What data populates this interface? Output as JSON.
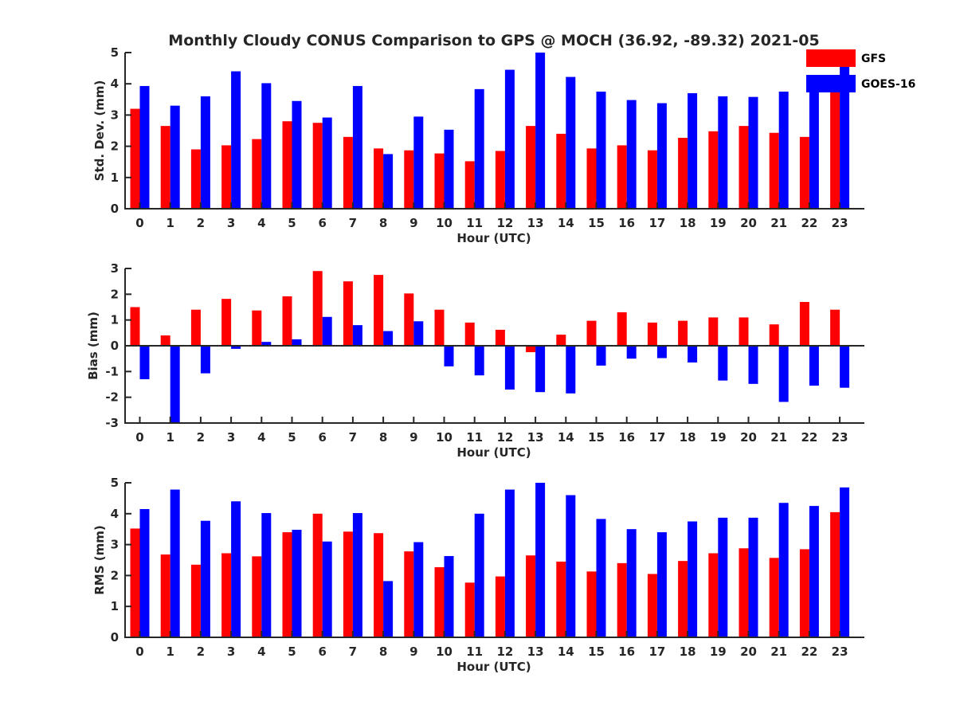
{
  "chart_data": [
    {
      "type": "bar",
      "title": "Monthly Cloudy CONUS Comparison to GPS @ MOCH (36.92, -89.32) 2021-05",
      "xlabel": "Hour (UTC)",
      "ylabel": "Std. Dev. (mm)",
      "ylim": [
        0,
        5
      ],
      "yticks": [
        "0",
        "1",
        "2",
        "3",
        "4",
        "5"
      ],
      "categories": [
        "0",
        "1",
        "2",
        "3",
        "4",
        "5",
        "6",
        "7",
        "8",
        "9",
        "10",
        "11",
        "12",
        "13",
        "14",
        "15",
        "16",
        "17",
        "18",
        "19",
        "20",
        "21",
        "22",
        "23"
      ],
      "series": [
        {
          "name": "GFS",
          "color": "#ff0000",
          "values": [
            3.2,
            2.65,
            1.9,
            2.03,
            2.23,
            2.8,
            2.75,
            2.3,
            1.93,
            1.87,
            1.77,
            1.52,
            1.85,
            2.65,
            2.4,
            1.93,
            2.03,
            1.87,
            2.27,
            2.48,
            2.65,
            2.43,
            2.3,
            3.9
          ]
        },
        {
          "name": "GOES-16",
          "color": "#0000ff",
          "values": [
            3.93,
            3.3,
            3.6,
            4.4,
            4.02,
            3.45,
            2.92,
            3.93,
            1.75,
            2.95,
            2.53,
            3.83,
            4.45,
            5.0,
            4.22,
            3.75,
            3.48,
            3.38,
            3.7,
            3.6,
            3.58,
            3.75,
            3.95,
            4.62
          ]
        }
      ],
      "legend": {
        "placement": "top-right",
        "entries": [
          "GFS",
          "GOES-16"
        ]
      },
      "grid": false
    },
    {
      "type": "bar",
      "xlabel": "Hour (UTC)",
      "ylabel": "Bias (mm)",
      "ylim": [
        -3,
        3
      ],
      "yticks": [
        "-3",
        "-2",
        "-1",
        "0",
        "1",
        "2",
        "3"
      ],
      "categories": [
        "0",
        "1",
        "2",
        "3",
        "4",
        "5",
        "6",
        "7",
        "8",
        "9",
        "10",
        "11",
        "12",
        "13",
        "14",
        "15",
        "16",
        "17",
        "18",
        "19",
        "20",
        "21",
        "22",
        "23"
      ],
      "series": [
        {
          "name": "GFS",
          "color": "#ff0000",
          "values": [
            1.5,
            0.4,
            1.4,
            1.82,
            1.37,
            1.92,
            2.9,
            2.5,
            2.75,
            2.03,
            1.4,
            0.9,
            0.62,
            -0.25,
            0.43,
            0.97,
            1.3,
            0.9,
            0.97,
            1.1,
            1.1,
            0.83,
            1.7,
            1.4
          ]
        },
        {
          "name": "GOES-16",
          "color": "#0000ff",
          "values": [
            -1.3,
            -3.0,
            -1.07,
            -0.12,
            0.15,
            0.25,
            1.12,
            0.8,
            0.57,
            0.95,
            -0.8,
            -1.15,
            -1.7,
            -1.8,
            -1.85,
            -0.77,
            -0.5,
            -0.48,
            -0.65,
            -1.35,
            -1.48,
            -2.18,
            -1.55,
            -1.63
          ]
        }
      ],
      "grid": false
    },
    {
      "type": "bar",
      "xlabel": "Hour (UTC)",
      "ylabel": "RMS (mm)",
      "ylim": [
        0,
        5
      ],
      "yticks": [
        "0",
        "1",
        "2",
        "3",
        "4",
        "5"
      ],
      "categories": [
        "0",
        "1",
        "2",
        "3",
        "4",
        "5",
        "6",
        "7",
        "8",
        "9",
        "10",
        "11",
        "12",
        "13",
        "14",
        "15",
        "16",
        "17",
        "18",
        "19",
        "20",
        "21",
        "22",
        "23"
      ],
      "series": [
        {
          "name": "GFS",
          "color": "#ff0000",
          "values": [
            3.52,
            2.68,
            2.35,
            2.72,
            2.62,
            3.4,
            4.0,
            3.42,
            3.37,
            2.78,
            2.27,
            1.77,
            1.97,
            2.65,
            2.45,
            2.13,
            2.4,
            2.05,
            2.47,
            2.72,
            2.88,
            2.57,
            2.85,
            4.05
          ]
        },
        {
          "name": "GOES-16",
          "color": "#0000ff",
          "values": [
            4.15,
            4.78,
            3.77,
            4.4,
            4.02,
            3.48,
            3.1,
            4.02,
            1.82,
            3.08,
            2.63,
            4.0,
            4.78,
            5.0,
            4.6,
            3.83,
            3.5,
            3.4,
            3.75,
            3.87,
            3.87,
            4.35,
            4.25,
            4.85
          ]
        }
      ],
      "grid": false
    }
  ]
}
